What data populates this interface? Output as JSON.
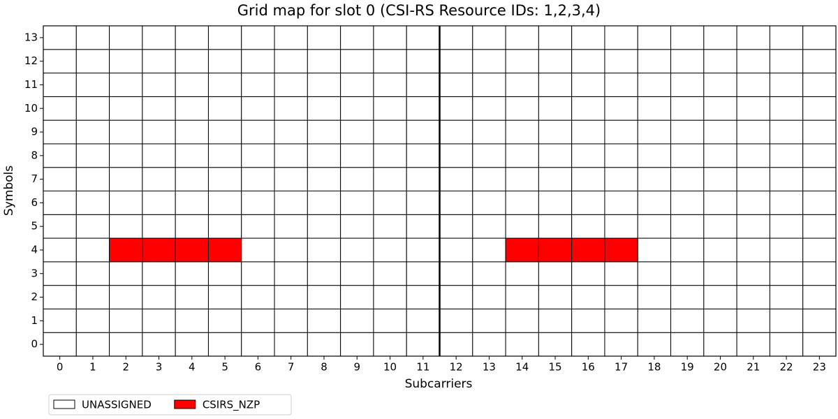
{
  "chart_data": {
    "type": "grid",
    "title": "Grid map for slot 0 (CSI-RS Resource IDs: 1,2,3,4)",
    "xlabel": "Subcarriers",
    "ylabel": "Symbols",
    "xlim": [
      -0.5,
      23.5
    ],
    "ylim": [
      -0.5,
      13.5
    ],
    "xticks": [
      0,
      1,
      2,
      3,
      4,
      5,
      6,
      7,
      8,
      9,
      10,
      11,
      12,
      13,
      14,
      15,
      16,
      17,
      18,
      19,
      20,
      21,
      22,
      23
    ],
    "yticks": [
      0,
      1,
      2,
      3,
      4,
      5,
      6,
      7,
      8,
      9,
      10,
      11,
      12,
      13
    ],
    "series": [
      {
        "name": "UNASSIGNED",
        "color": "#ffffff"
      },
      {
        "name": "CSIRS_NZP",
        "color": "#ff0000"
      }
    ],
    "legend": "lower left",
    "values": [
      [
        0,
        0,
        0,
        0,
        0,
        0,
        0,
        0,
        0,
        0,
        0,
        0,
        0,
        0,
        0,
        0,
        0,
        0,
        0,
        0,
        0,
        0,
        0,
        0
      ],
      [
        0,
        0,
        0,
        0,
        0,
        0,
        0,
        0,
        0,
        0,
        0,
        0,
        0,
        0,
        0,
        0,
        0,
        0,
        0,
        0,
        0,
        0,
        0,
        0
      ],
      [
        0,
        0,
        0,
        0,
        0,
        0,
        0,
        0,
        0,
        0,
        0,
        0,
        0,
        0,
        0,
        0,
        0,
        0,
        0,
        0,
        0,
        0,
        0,
        0
      ],
      [
        0,
        0,
        0,
        0,
        0,
        0,
        0,
        0,
        0,
        0,
        0,
        0,
        0,
        0,
        0,
        0,
        0,
        0,
        0,
        0,
        0,
        0,
        0,
        0
      ],
      [
        0,
        0,
        1,
        1,
        1,
        1,
        0,
        0,
        0,
        0,
        0,
        0,
        0,
        0,
        1,
        1,
        1,
        1,
        0,
        0,
        0,
        0,
        0,
        0
      ],
      [
        0,
        0,
        0,
        0,
        0,
        0,
        0,
        0,
        0,
        0,
        0,
        0,
        0,
        0,
        0,
        0,
        0,
        0,
        0,
        0,
        0,
        0,
        0,
        0
      ],
      [
        0,
        0,
        0,
        0,
        0,
        0,
        0,
        0,
        0,
        0,
        0,
        0,
        0,
        0,
        0,
        0,
        0,
        0,
        0,
        0,
        0,
        0,
        0,
        0
      ],
      [
        0,
        0,
        0,
        0,
        0,
        0,
        0,
        0,
        0,
        0,
        0,
        0,
        0,
        0,
        0,
        0,
        0,
        0,
        0,
        0,
        0,
        0,
        0,
        0
      ],
      [
        0,
        0,
        0,
        0,
        0,
        0,
        0,
        0,
        0,
        0,
        0,
        0,
        0,
        0,
        0,
        0,
        0,
        0,
        0,
        0,
        0,
        0,
        0,
        0
      ],
      [
        0,
        0,
        0,
        0,
        0,
        0,
        0,
        0,
        0,
        0,
        0,
        0,
        0,
        0,
        0,
        0,
        0,
        0,
        0,
        0,
        0,
        0,
        0,
        0
      ],
      [
        0,
        0,
        0,
        0,
        0,
        0,
        0,
        0,
        0,
        0,
        0,
        0,
        0,
        0,
        0,
        0,
        0,
        0,
        0,
        0,
        0,
        0,
        0,
        0
      ],
      [
        0,
        0,
        0,
        0,
        0,
        0,
        0,
        0,
        0,
        0,
        0,
        0,
        0,
        0,
        0,
        0,
        0,
        0,
        0,
        0,
        0,
        0,
        0,
        0
      ],
      [
        0,
        0,
        0,
        0,
        0,
        0,
        0,
        0,
        0,
        0,
        0,
        0,
        0,
        0,
        0,
        0,
        0,
        0,
        0,
        0,
        0,
        0,
        0,
        0
      ],
      [
        0,
        0,
        0,
        0,
        0,
        0,
        0,
        0,
        0,
        0,
        0,
        0,
        0,
        0,
        0,
        0,
        0,
        0,
        0,
        0,
        0,
        0,
        0,
        0
      ]
    ]
  }
}
